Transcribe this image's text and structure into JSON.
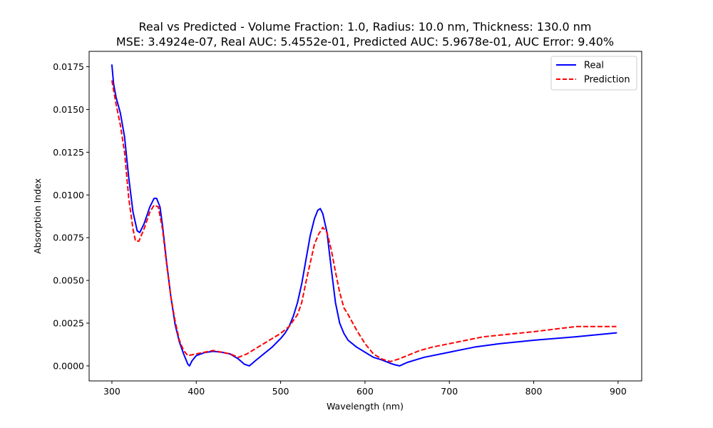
{
  "chart_data": {
    "type": "line",
    "title": "Real vs Predicted - Volume Fraction: 1.0, Radius: 10.0 nm, Thickness: 130.0 nm",
    "subtitle": "MSE: 3.4924e-07, Real AUC: 5.4552e-01, Predicted AUC: 5.9678e-01, AUC Error: 9.40%",
    "xlabel": "Wavelength (nm)",
    "ylabel": "Absorption Index",
    "xlim": [
      273,
      928
    ],
    "ylim": [
      -0.00088,
      0.0184
    ],
    "xticks": [
      300,
      400,
      500,
      600,
      700,
      800,
      900
    ],
    "yticks": [
      0.0,
      0.0025,
      0.005,
      0.0075,
      0.01,
      0.0125,
      0.015,
      0.0175
    ],
    "xtick_labels": [
      "300",
      "400",
      "500",
      "600",
      "700",
      "800",
      "900"
    ],
    "ytick_labels": [
      "0.0000",
      "0.0025",
      "0.0050",
      "0.0075",
      "0.0100",
      "0.0125",
      "0.0150",
      "0.0175"
    ],
    "grid": false,
    "legend": {
      "position": "top-right",
      "entries": [
        "Real",
        "Prediction"
      ]
    },
    "series": [
      {
        "name": "Real",
        "color": "#0000ff",
        "style": "solid",
        "points": [
          [
            300,
            0.0176
          ],
          [
            302,
            0.0165
          ],
          [
            305,
            0.0157
          ],
          [
            310,
            0.0148
          ],
          [
            315,
            0.0134
          ],
          [
            320,
            0.011
          ],
          [
            325,
            0.009
          ],
          [
            330,
            0.0079
          ],
          [
            333,
            0.0078
          ],
          [
            338,
            0.0083
          ],
          [
            345,
            0.0093
          ],
          [
            350,
            0.0098
          ],
          [
            353,
            0.0098
          ],
          [
            357,
            0.0093
          ],
          [
            360,
            0.0082
          ],
          [
            365,
            0.006
          ],
          [
            370,
            0.004
          ],
          [
            375,
            0.0024
          ],
          [
            380,
            0.0014
          ],
          [
            385,
            0.0007
          ],
          [
            390,
            0.0001
          ],
          [
            392,
            0.0
          ],
          [
            395,
            0.0003
          ],
          [
            400,
            0.0006
          ],
          [
            410,
            0.00078
          ],
          [
            420,
            0.00085
          ],
          [
            430,
            0.0008
          ],
          [
            440,
            0.0007
          ],
          [
            450,
            0.0004
          ],
          [
            457,
            0.0001
          ],
          [
            463,
            0.0
          ],
          [
            470,
            0.0003
          ],
          [
            480,
            0.0007
          ],
          [
            490,
            0.0011
          ],
          [
            500,
            0.0016
          ],
          [
            505,
            0.0019
          ],
          [
            510,
            0.0023
          ],
          [
            515,
            0.0029
          ],
          [
            520,
            0.0037
          ],
          [
            525,
            0.0048
          ],
          [
            530,
            0.0062
          ],
          [
            535,
            0.0076
          ],
          [
            540,
            0.0086
          ],
          [
            544,
            0.0091
          ],
          [
            547,
            0.0092
          ],
          [
            550,
            0.0089
          ],
          [
            555,
            0.0078
          ],
          [
            560,
            0.0057
          ],
          [
            565,
            0.0037
          ],
          [
            570,
            0.0025
          ],
          [
            575,
            0.0019
          ],
          [
            580,
            0.0015
          ],
          [
            590,
            0.0011
          ],
          [
            600,
            0.0008
          ],
          [
            610,
            0.0005
          ],
          [
            620,
            0.00035
          ],
          [
            630,
            0.00015
          ],
          [
            635,
            7e-05
          ],
          [
            641,
            0.0
          ],
          [
            650,
            0.0002
          ],
          [
            670,
            0.0005
          ],
          [
            700,
            0.0008
          ],
          [
            730,
            0.0011
          ],
          [
            760,
            0.0013
          ],
          [
            800,
            0.0015
          ],
          [
            850,
            0.0017
          ],
          [
            898,
            0.00193
          ]
        ]
      },
      {
        "name": "Prediction",
        "color": "#ff0000",
        "style": "dashed",
        "points": [
          [
            300,
            0.0167
          ],
          [
            305,
            0.0153
          ],
          [
            310,
            0.0141
          ],
          [
            315,
            0.0125
          ],
          [
            320,
            0.0098
          ],
          [
            325,
            0.008
          ],
          [
            328,
            0.0073
          ],
          [
            332,
            0.0073
          ],
          [
            338,
            0.008
          ],
          [
            345,
            0.009
          ],
          [
            350,
            0.0094
          ],
          [
            355,
            0.0093
          ],
          [
            360,
            0.008
          ],
          [
            365,
            0.0059
          ],
          [
            370,
            0.004
          ],
          [
            375,
            0.0026
          ],
          [
            380,
            0.0015
          ],
          [
            385,
            0.0009
          ],
          [
            390,
            0.0006
          ],
          [
            400,
            0.0007
          ],
          [
            410,
            0.0008
          ],
          [
            420,
            0.0009
          ],
          [
            430,
            0.0008
          ],
          [
            440,
            0.0007
          ],
          [
            450,
            0.0005
          ],
          [
            460,
            0.0007
          ],
          [
            470,
            0.001
          ],
          [
            480,
            0.0013
          ],
          [
            490,
            0.0016
          ],
          [
            500,
            0.0019
          ],
          [
            510,
            0.0023
          ],
          [
            520,
            0.003
          ],
          [
            525,
            0.0037
          ],
          [
            530,
            0.0049
          ],
          [
            535,
            0.006
          ],
          [
            540,
            0.0071
          ],
          [
            545,
            0.0077
          ],
          [
            550,
            0.0081
          ],
          [
            555,
            0.0078
          ],
          [
            560,
            0.0068
          ],
          [
            565,
            0.0055
          ],
          [
            570,
            0.0043
          ],
          [
            575,
            0.0034
          ],
          [
            580,
            0.003
          ],
          [
            590,
            0.0021
          ],
          [
            600,
            0.0013
          ],
          [
            610,
            0.0007
          ],
          [
            620,
            0.0004
          ],
          [
            630,
            0.00025
          ],
          [
            640,
            0.0004
          ],
          [
            650,
            0.0006
          ],
          [
            665,
            0.0009
          ],
          [
            680,
            0.0011
          ],
          [
            700,
            0.0013
          ],
          [
            720,
            0.0015
          ],
          [
            740,
            0.0017
          ],
          [
            760,
            0.0018
          ],
          [
            780,
            0.0019
          ],
          [
            800,
            0.002
          ],
          [
            825,
            0.00215
          ],
          [
            850,
            0.0023
          ],
          [
            870,
            0.0023
          ],
          [
            898,
            0.0023
          ]
        ]
      }
    ]
  }
}
